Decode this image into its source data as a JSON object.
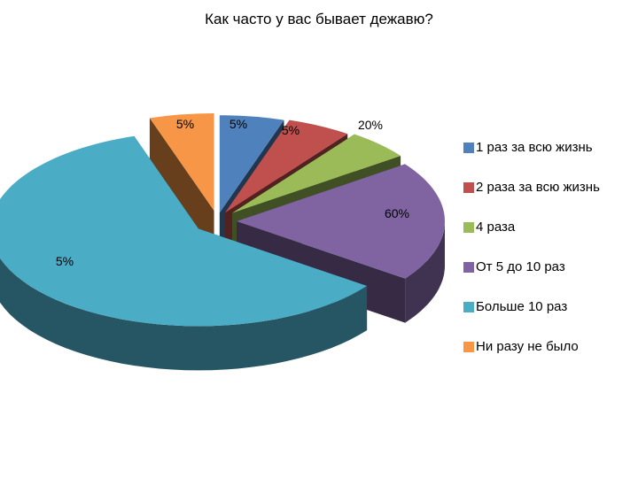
{
  "chart_data": {
    "type": "pie",
    "style": "3d-exploded",
    "title": "Как часто у вас бывает дежавю?",
    "series": [
      {
        "label": "1 раз за всю жизнь",
        "value": 5,
        "data_label": "5%",
        "color": "#4f81bd"
      },
      {
        "label": "2 раза за всю жизнь",
        "value": 5,
        "data_label": "5%",
        "color": "#c0504d"
      },
      {
        "label": "4 раза",
        "value": 5,
        "data_label": "5%",
        "color": "#9bbb59"
      },
      {
        "label": "От 5 до 10 раз",
        "value": 20,
        "data_label": "20%",
        "color": "#8064a2"
      },
      {
        "label": "Больше 10 раз",
        "value": 60,
        "data_label": "60%",
        "color": "#4bacc6"
      },
      {
        "label": "Ни разу не было",
        "value": 5,
        "data_label": "5%",
        "color": "#f79646"
      }
    ],
    "legend_position": "right"
  }
}
